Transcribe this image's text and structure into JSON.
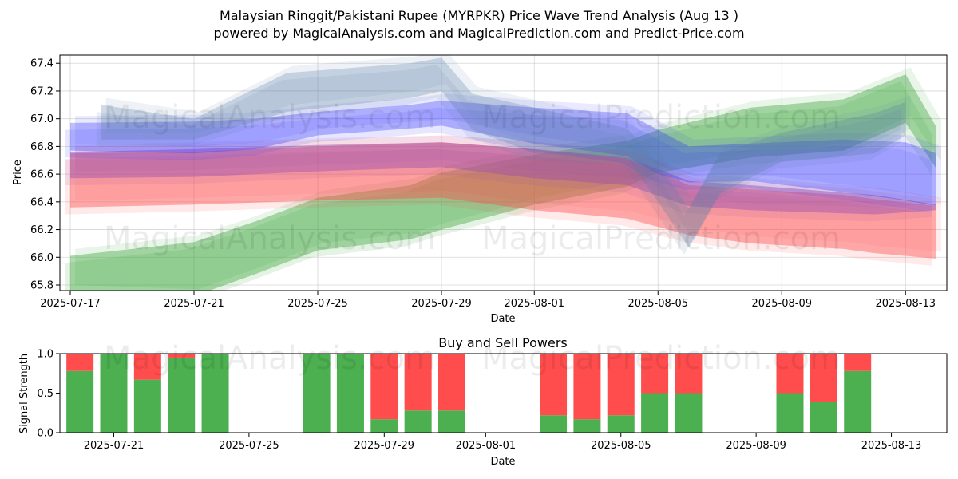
{
  "header": {
    "title_line1": "Malaysian Ringgit/Pakistani Rupee (MYRPKR) Price Wave Trend Analysis (Aug 13 )",
    "title_line2": "powered by MagicalAnalysis.com and MagicalPrediction.com and Predict-Price.com"
  },
  "watermarks": {
    "left": "MagicalAnalysis.com",
    "right": "MagicalPrediction.com"
  },
  "colors": {
    "green_band": "#2ca02c",
    "red_band": "#ff4d4d",
    "blue_band": "#3333ff",
    "purple_band": "#9b4fb0",
    "buy": "#4caf50",
    "sell": "#ff4d4d"
  },
  "chart_data": [
    {
      "type": "area",
      "xlabel": "Date",
      "ylabel": "Price",
      "ylim": [
        65.75,
        67.45
      ],
      "xlim": [
        "2025-07-17",
        "2025-08-14"
      ],
      "x_ticks": [
        "2025-07-17",
        "2025-07-21",
        "2025-07-25",
        "2025-07-29",
        "2025-08-01",
        "2025-08-05",
        "2025-08-09",
        "2025-08-13"
      ],
      "y_ticks": [
        "65.8",
        "66.0",
        "66.2",
        "66.4",
        "66.6",
        "66.8",
        "67.0",
        "67.2",
        "67.4"
      ],
      "grid": true,
      "series": [
        {
          "color": "green",
          "x": [
            "2025-07-17",
            "2025-07-21",
            "2025-07-23",
            "2025-07-25",
            "2025-07-28",
            "2025-07-29",
            "2025-08-01",
            "2025-08-04",
            "2025-08-05",
            "2025-08-08",
            "2025-08-11",
            "2025-08-13",
            "2025-08-14"
          ],
          "upper": [
            66.01,
            66.11,
            66.26,
            66.43,
            66.52,
            66.61,
            66.74,
            66.84,
            66.92,
            67.08,
            67.14,
            67.32,
            66.94
          ],
          "lower": [
            65.75,
            65.72,
            65.88,
            66.05,
            66.13,
            66.2,
            66.38,
            66.51,
            66.61,
            66.72,
            66.77,
            66.97,
            66.64
          ]
        },
        {
          "color": "red",
          "x": [
            "2025-07-17",
            "2025-07-21",
            "2025-07-25",
            "2025-07-29",
            "2025-08-01",
            "2025-08-04",
            "2025-08-06",
            "2025-08-08",
            "2025-08-11",
            "2025-08-12",
            "2025-08-14"
          ],
          "upper": [
            66.75,
            66.76,
            66.8,
            66.83,
            66.78,
            66.71,
            66.52,
            66.49,
            66.45,
            66.42,
            66.37
          ],
          "lower": [
            66.36,
            66.38,
            66.41,
            66.43,
            66.34,
            66.28,
            66.16,
            66.1,
            66.06,
            66.03,
            65.99
          ]
        },
        {
          "color": "purple",
          "x": [
            "2025-07-17",
            "2025-07-21",
            "2025-07-25",
            "2025-07-29",
            "2025-08-01",
            "2025-08-04",
            "2025-08-06",
            "2025-08-08",
            "2025-08-12",
            "2025-08-14"
          ],
          "upper": [
            66.76,
            66.78,
            66.81,
            66.83,
            66.78,
            66.72,
            66.55,
            66.52,
            66.45,
            66.38
          ],
          "lower": [
            66.57,
            66.58,
            66.62,
            66.65,
            66.57,
            66.52,
            66.37,
            66.34,
            66.31,
            66.34
          ]
        },
        {
          "color": "blue",
          "x": [
            "2025-07-17",
            "2025-07-21",
            "2025-07-23",
            "2025-07-25",
            "2025-07-28",
            "2025-07-29",
            "2025-08-01",
            "2025-08-04",
            "2025-08-05",
            "2025-08-06",
            "2025-08-08",
            "2025-08-11",
            "2025-08-13",
            "2025-08-14"
          ],
          "upper": [
            66.97,
            66.98,
            67.0,
            67.05,
            67.1,
            67.13,
            67.08,
            67.04,
            66.92,
            66.8,
            66.82,
            66.85,
            66.83,
            66.75
          ],
          "lower": [
            66.77,
            66.75,
            66.78,
            66.88,
            66.93,
            66.95,
            66.82,
            66.73,
            66.6,
            66.54,
            66.55,
            66.47,
            66.41,
            66.37
          ]
        },
        {
          "color": "steel",
          "x": [
            "2025-07-18",
            "2025-07-21",
            "2025-07-24",
            "2025-07-28",
            "2025-07-29",
            "2025-07-30",
            "2025-08-01",
            "2025-08-04",
            "2025-08-05",
            "2025-08-06",
            "2025-08-07",
            "2025-08-09",
            "2025-08-12",
            "2025-08-13"
          ],
          "upper": [
            67.1,
            67.0,
            67.33,
            67.4,
            67.44,
            67.18,
            67.08,
            66.93,
            66.68,
            66.35,
            66.75,
            66.9,
            67.04,
            67.12
          ],
          "lower": [
            66.85,
            66.85,
            67.05,
            67.15,
            67.2,
            66.92,
            66.75,
            66.72,
            66.4,
            66.07,
            66.46,
            66.69,
            66.75,
            66.88
          ]
        }
      ]
    },
    {
      "type": "bar",
      "title": "Buy and Sell Powers",
      "xlabel": "Date",
      "ylabel": "Signal Strength",
      "ylim": [
        0,
        1
      ],
      "x_ticks": [
        "2025-07-21",
        "2025-07-25",
        "2025-07-29",
        "2025-08-01",
        "2025-08-05",
        "2025-08-09",
        "2025-08-13"
      ],
      "y_ticks": [
        "0.0",
        "0.5",
        "1.0"
      ],
      "dates": [
        "2025-07-20",
        "2025-07-21",
        "2025-07-22",
        "2025-07-23",
        "2025-07-24",
        "2025-07-27",
        "2025-07-28",
        "2025-07-29",
        "2025-07-30",
        "2025-07-31",
        "2025-08-03",
        "2025-08-04",
        "2025-08-05",
        "2025-08-06",
        "2025-08-07",
        "2025-08-10",
        "2025-08-11",
        "2025-08-12"
      ],
      "buy": [
        0.78,
        1.0,
        0.67,
        0.95,
        1.0,
        1.0,
        1.0,
        0.17,
        0.28,
        0.28,
        0.22,
        0.17,
        0.22,
        0.5,
        0.5,
        0.5,
        0.39,
        0.78
      ],
      "sell": [
        0.22,
        0.0,
        0.33,
        0.05,
        0.0,
        0.0,
        0.0,
        0.83,
        0.72,
        0.72,
        0.78,
        0.83,
        0.78,
        0.5,
        0.5,
        0.5,
        0.61,
        0.22
      ]
    }
  ]
}
